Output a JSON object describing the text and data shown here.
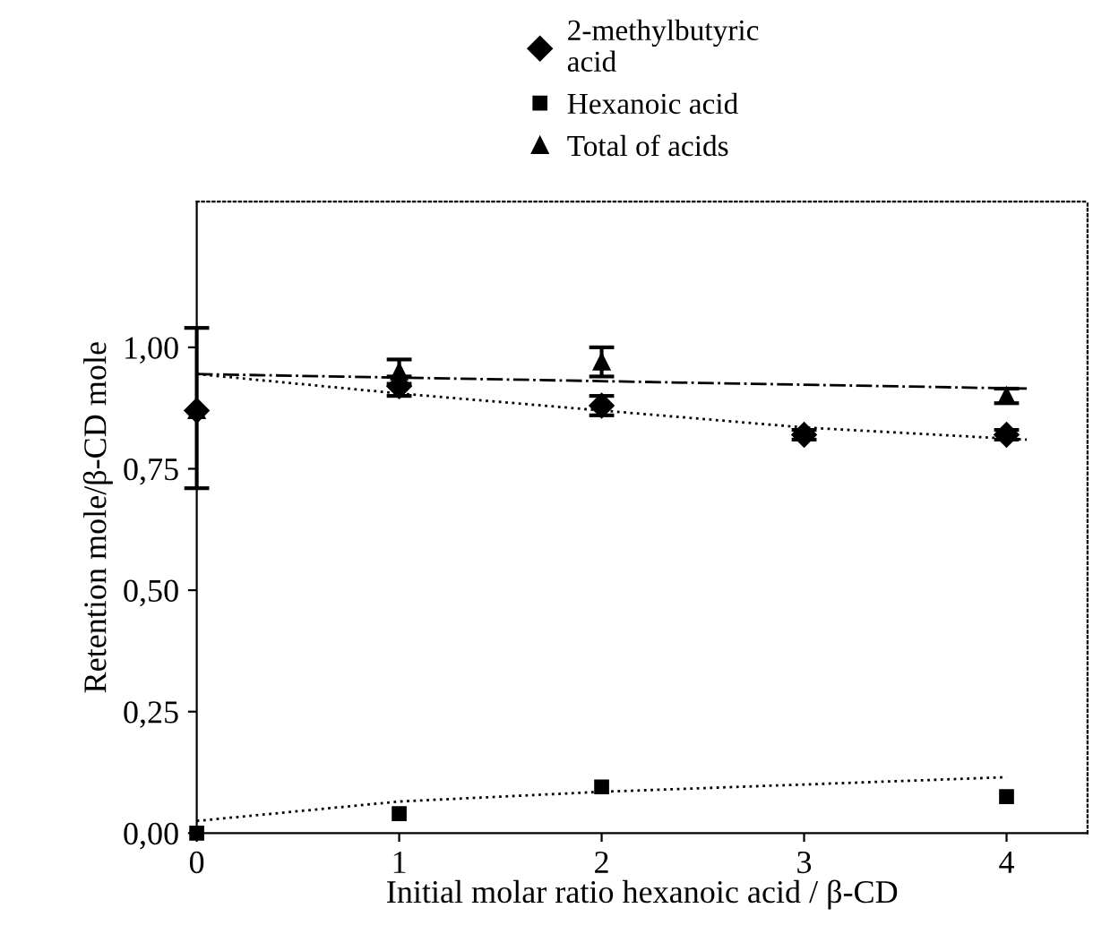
{
  "chart_data": {
    "type": "scatter",
    "xlabel": "Initial molar ratio hexanoic acid / β-CD",
    "ylabel": "Retention mole/β-CD mole",
    "x": [
      0,
      1,
      2,
      3,
      4
    ],
    "series": [
      {
        "name": "2-methylbutyric\nacid",
        "color": "#000000",
        "marker": "diamond",
        "values": [
          0.87,
          0.92,
          0.88,
          0.82,
          0.82
        ],
        "errors": [
          null,
          0.02,
          0.02,
          0.01,
          0.01
        ]
      },
      {
        "name": "Hexanoic acid",
        "color": "#000000",
        "marker": "square",
        "values": [
          0.0,
          0.04,
          0.095,
          null,
          0.075
        ]
      },
      {
        "name": "Total of acids",
        "color": "#000000",
        "marker": "triangle",
        "values": [
          0.87,
          0.95,
          0.97,
          null,
          0.9
        ],
        "errors": [
          [
            0.71,
            1.04
          ],
          0.025,
          0.03,
          null,
          0.015
        ]
      },
      {
        "type": "line",
        "color": "#000000",
        "line_style": "dotted",
        "x": [
          0,
          1,
          2,
          3,
          4.1
        ],
        "values": [
          0.945,
          0.905,
          0.87,
          0.835,
          0.81
        ]
      },
      {
        "type": "line",
        "color": "#000000",
        "line_style": "dotted",
        "x": [
          0,
          1,
          2,
          3,
          4
        ],
        "values": [
          0.025,
          0.065,
          0.085,
          0.1,
          0.115
        ]
      },
      {
        "type": "line",
        "color": "#000000",
        "line_style": "dashdot",
        "x": [
          0,
          4.1
        ],
        "values": [
          0.945,
          0.915
        ]
      }
    ],
    "xlim": [
      0,
      4.4
    ],
    "xticks": [
      0,
      1,
      2,
      3,
      4
    ],
    "ylim": [
      0,
      1.3
    ],
    "yticks": [
      {
        "value": 0,
        "label": "0,00"
      },
      {
        "value": 0.25,
        "label": "0,25"
      },
      {
        "value": 0.5,
        "label": "0,50"
      },
      {
        "value": 0.75,
        "label": "0,75"
      },
      {
        "value": 1.0,
        "label": "1,00"
      }
    ],
    "legend": "top",
    "grid": false
  }
}
